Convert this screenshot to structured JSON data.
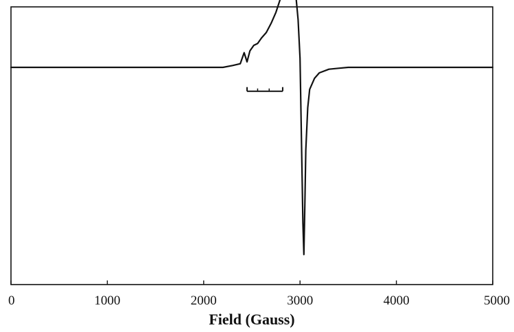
{
  "chart_data": {
    "type": "line",
    "title": "",
    "xlabel": "Field (Gauss)",
    "ylabel": "",
    "xlim": [
      0,
      5000
    ],
    "ylim": [
      -1,
      1
    ],
    "grid": false,
    "x_ticks": [
      "0",
      "1000",
      "2000",
      "3000",
      "4000",
      "5000"
    ],
    "series": [
      {
        "name": "",
        "x": [
          0,
          1000,
          2000,
          2200,
          2300,
          2380,
          2420,
          2450,
          2480,
          2520,
          2560,
          2600,
          2650,
          2700,
          2750,
          2800,
          2850,
          2900,
          2950,
          2980,
          3000,
          3010,
          3020,
          3030,
          3040,
          3050,
          3060,
          3080,
          3100,
          3150,
          3200,
          3300,
          3400,
          3500,
          4000,
          4500,
          5000
        ],
        "y": [
          0,
          0,
          0,
          0,
          0.01,
          0.02,
          0.08,
          0.03,
          0.09,
          0.12,
          0.13,
          0.16,
          0.19,
          0.24,
          0.3,
          0.38,
          0.45,
          0.49,
          0.43,
          0.26,
          0.05,
          -0.25,
          -0.55,
          -0.85,
          -1.02,
          -0.75,
          -0.45,
          -0.22,
          -0.12,
          -0.06,
          -0.03,
          -0.01,
          -0.005,
          0,
          0,
          0,
          0
        ]
      }
    ],
    "scale_bar": {
      "x_start": 2450,
      "x_end": 2820,
      "minor_ticks": [
        2560,
        2680
      ],
      "y": -0.13
    },
    "colors": {
      "line": "#111111",
      "axis": "#111111",
      "background": "#ffffff"
    }
  }
}
